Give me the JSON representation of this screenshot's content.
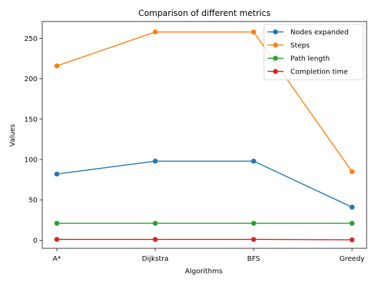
{
  "chart_data": {
    "type": "line",
    "title": "Comparison of different metrics",
    "xlabel": "Algorithms",
    "ylabel": "Values",
    "categories": [
      "A*",
      "Dijkstra",
      "BFS",
      "Greedy"
    ],
    "ylim": [
      -10,
      271
    ],
    "yticks": [
      0,
      50,
      100,
      150,
      200,
      250
    ],
    "grid": false,
    "legend_position": "top-right",
    "series": [
      {
        "name": "Nodes expanded",
        "color": "#1f77b4",
        "values": [
          82,
          98,
          98,
          41
        ]
      },
      {
        "name": "Steps",
        "color": "#ff7f0e",
        "values": [
          216,
          258,
          258,
          85
        ]
      },
      {
        "name": "Path length",
        "color": "#2ca02c",
        "values": [
          21,
          21,
          21,
          21
        ]
      },
      {
        "name": "Completion time",
        "color": "#d62728",
        "values": [
          1,
          1,
          1,
          0.5
        ]
      }
    ]
  }
}
